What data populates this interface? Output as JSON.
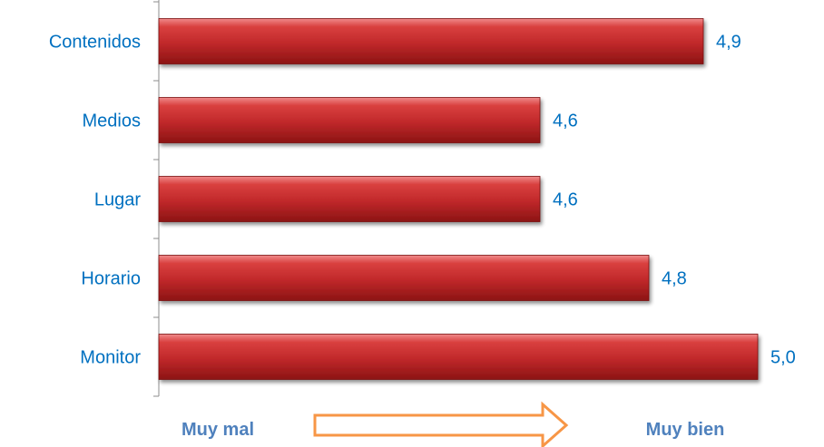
{
  "chart_data": {
    "type": "bar",
    "orientation": "horizontal",
    "categories": [
      "Contenidos",
      "Medios",
      "Lugar",
      "Horario",
      "Monitor"
    ],
    "values": [
      4.9,
      4.6,
      4.6,
      4.8,
      5.0
    ],
    "value_labels": [
      "4,9",
      "4,6",
      "4,6",
      "4,8",
      "5,0"
    ],
    "xlim": [
      3.9,
      5.0
    ],
    "grid": false,
    "legend": "none",
    "bar_color": "#c0282a",
    "label_color": "#0070c0"
  },
  "scale": {
    "low_label": "Muy mal",
    "high_label": "Muy bien",
    "arrow_color": "#f79646",
    "low_color": "#4f81bd",
    "high_color": "#4f81bd"
  }
}
